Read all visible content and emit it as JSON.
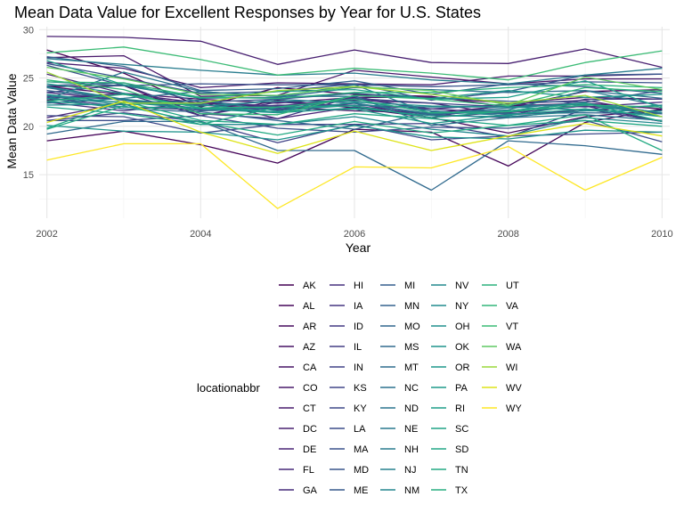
{
  "chart_data": {
    "type": "line",
    "title": "Mean Data Value for Excellent Responses by Year for U.S. States",
    "xlabel": "Year",
    "ylabel": "Mean Data Value",
    "x": [
      2002,
      2003,
      2004,
      2005,
      2006,
      2007,
      2008,
      2009,
      2010
    ],
    "x_ticks": [
      2002,
      2004,
      2006,
      2008,
      2010
    ],
    "y_ticks": [
      15,
      20,
      25,
      30
    ],
    "xlim": [
      2001.9,
      2010.1
    ],
    "ylim": [
      10.5,
      30.3
    ],
    "grid": true,
    "legend": {
      "title": "locationabbr",
      "position": "bottom"
    },
    "series": [
      {
        "name": "AK",
        "color": "#440154",
        "values": [
          27.9,
          25.5,
          22.0,
          24.0,
          23.3,
          23.1,
          22.0,
          23.6,
          23.8
        ]
      },
      {
        "name": "AL",
        "color": "#450559",
        "values": [
          18.5,
          19.5,
          18.1,
          16.2,
          19.7,
          19.4,
          15.9,
          20.4,
          21.8
        ]
      },
      {
        "name": "AR",
        "color": "#460a5d",
        "values": [
          24.1,
          24.2,
          21.1,
          22.7,
          21.9,
          20.9,
          19.3,
          21.0,
          21.7
        ]
      },
      {
        "name": "AZ",
        "color": "#471063",
        "values": [
          24.1,
          23.3,
          22.2,
          22.0,
          21.6,
          21.4,
          22.1,
          22.4,
          21.8
        ]
      },
      {
        "name": "CA",
        "color": "#471365",
        "values": [
          22.7,
          23.4,
          22.8,
          22.4,
          23.0,
          23.0,
          22.4,
          23.0,
          22.8
        ]
      },
      {
        "name": "CO",
        "color": "#48186a",
        "values": [
          27.1,
          27.3,
          23.1,
          23.2,
          25.8,
          25.1,
          24.4,
          24.9,
          24.9
        ]
      },
      {
        "name": "CT",
        "color": "#481c6e",
        "values": [
          26.6,
          26.0,
          24.0,
          24.5,
          24.4,
          24.3,
          25.2,
          25.2,
          25.4
        ]
      },
      {
        "name": "DC",
        "color": "#482071",
        "values": [
          29.3,
          29.2,
          28.8,
          26.4,
          27.9,
          26.6,
          26.5,
          28.0,
          26.1
        ]
      },
      {
        "name": "DE",
        "color": "#482475",
        "values": [
          20.9,
          22.4,
          22.7,
          20.8,
          22.0,
          20.9,
          21.5,
          22.1,
          20.5
        ]
      },
      {
        "name": "FL",
        "color": "#472878",
        "values": [
          25.4,
          23.4,
          22.4,
          22.0,
          22.7,
          22.4,
          21.2,
          21.6,
          22.2
        ]
      },
      {
        "name": "GA",
        "color": "#472c7a",
        "values": [
          23.5,
          22.7,
          22.2,
          21.7,
          22.4,
          20.9,
          22.3,
          22.7,
          21.3
        ]
      },
      {
        "name": "HI",
        "color": "#46307e",
        "values": [
          22.5,
          21.6,
          22.5,
          22.1,
          22.9,
          21.8,
          22.3,
          22.0,
          22.5
        ]
      },
      {
        "name": "IA",
        "color": "#453581",
        "values": [
          22.9,
          23.4,
          21.1,
          22.5,
          22.1,
          21.2,
          20.9,
          21.8,
          20.5
        ]
      },
      {
        "name": "ID",
        "color": "#443983",
        "values": [
          23.5,
          24.3,
          21.3,
          20.8,
          23.1,
          21.6,
          21.1,
          22.8,
          22.8
        ]
      },
      {
        "name": "IL",
        "color": "#433d84",
        "values": [
          23.0,
          22.0,
          21.7,
          22.2,
          22.2,
          21.8,
          21.4,
          22.1,
          21.4
        ]
      },
      {
        "name": "IN",
        "color": "#414287",
        "values": [
          20.6,
          21.4,
          20.5,
          18.3,
          20.2,
          20.3,
          18.9,
          21.8,
          20.5
        ]
      },
      {
        "name": "KS",
        "color": "#404688",
        "values": [
          23.1,
          22.8,
          21.8,
          21.9,
          22.9,
          22.4,
          22.0,
          22.3,
          21.3
        ]
      },
      {
        "name": "KY",
        "color": "#3e4989",
        "values": [
          21.1,
          21.0,
          19.3,
          20.2,
          20.2,
          18.6,
          19.0,
          19.2,
          19.4
        ]
      },
      {
        "name": "LA",
        "color": "#3c4d8a",
        "values": [
          20.6,
          20.6,
          21.1,
          19.8,
          19.4,
          19.9,
          19.8,
          20.6,
          18.4
        ]
      },
      {
        "name": "MA",
        "color": "#3a528b",
        "values": [
          26.3,
          24.2,
          24.4,
          24.3,
          24.3,
          24.1,
          24.3,
          24.6,
          24.5
        ]
      },
      {
        "name": "MD",
        "color": "#38558c",
        "values": [
          26.5,
          25.0,
          23.4,
          23.6,
          24.4,
          22.7,
          23.6,
          25.3,
          25.4
        ]
      },
      {
        "name": "ME",
        "color": "#37598c",
        "values": [
          24.2,
          24.5,
          22.5,
          22.8,
          23.4,
          22.9,
          22.6,
          22.5,
          23.7
        ]
      },
      {
        "name": "MI",
        "color": "#355e8d",
        "values": [
          23.7,
          22.8,
          21.6,
          21.8,
          22.4,
          21.2,
          21.6,
          22.4,
          21.0
        ]
      },
      {
        "name": "MN",
        "color": "#33628d",
        "values": [
          27.2,
          26.2,
          23.7,
          23.9,
          24.7,
          23.3,
          24.4,
          24.1,
          23.4
        ]
      },
      {
        "name": "MO",
        "color": "#31668e",
        "values": [
          22.9,
          21.8,
          21.5,
          20.6,
          19.7,
          21.5,
          21.3,
          21.4,
          21.3
        ]
      },
      {
        "name": "MS",
        "color": "#306a8e",
        "values": [
          19.2,
          20.5,
          20.5,
          17.5,
          17.5,
          13.4,
          18.5,
          18.0,
          17.1
        ]
      },
      {
        "name": "MT",
        "color": "#2e6d8e",
        "values": [
          24.6,
          24.2,
          22.9,
          23.0,
          24.0,
          23.8,
          23.5,
          23.7,
          22.9
        ]
      },
      {
        "name": "NC",
        "color": "#2c718e",
        "values": [
          24.0,
          22.7,
          21.8,
          22.8,
          22.4,
          21.3,
          21.9,
          22.4,
          21.4
        ]
      },
      {
        "name": "ND",
        "color": "#2b758e",
        "values": [
          22.4,
          22.9,
          23.6,
          23.1,
          23.1,
          20.1,
          20.9,
          21.2,
          20.6
        ]
      },
      {
        "name": "NE",
        "color": "#29798e",
        "values": [
          22.8,
          25.6,
          23.6,
          23.1,
          24.3,
          21.3,
          21.7,
          23.7,
          22.1
        ]
      },
      {
        "name": "NH",
        "color": "#287c8e",
        "values": [
          27.0,
          26.4,
          25.8,
          25.3,
          25.5,
          24.8,
          24.4,
          25.3,
          26.0
        ]
      },
      {
        "name": "NJ",
        "color": "#26818e",
        "values": [
          23.2,
          22.2,
          22.7,
          21.6,
          22.2,
          22.0,
          22.0,
          22.4,
          21.0
        ]
      },
      {
        "name": "NM",
        "color": "#25858e",
        "values": [
          24.1,
          22.8,
          22.1,
          22.6,
          22.6,
          21.6,
          21.1,
          22.3,
          21.4
        ]
      },
      {
        "name": "NV",
        "color": "#23888e",
        "values": [
          22.2,
          22.3,
          20.2,
          20.2,
          21.0,
          19.7,
          19.0,
          20.9,
          20.3
        ]
      },
      {
        "name": "NY",
        "color": "#218c8d",
        "values": [
          22.9,
          22.5,
          21.8,
          21.4,
          21.9,
          21.1,
          21.0,
          21.6,
          21.6
        ]
      },
      {
        "name": "OH",
        "color": "#21908d",
        "values": [
          23.3,
          22.4,
          22.3,
          21.4,
          22.5,
          22.1,
          22.0,
          21.7,
          22.2
        ]
      },
      {
        "name": "OK",
        "color": "#1f948c",
        "values": [
          20.1,
          19.5,
          19.4,
          18.6,
          20.1,
          18.9,
          18.7,
          19.6,
          19.4
        ]
      },
      {
        "name": "OR",
        "color": "#1f978b",
        "values": [
          24.4,
          23.4,
          21.9,
          21.5,
          23.2,
          22.9,
          23.7,
          23.0,
          23.3
        ]
      },
      {
        "name": "PA",
        "color": "#1f9a8a",
        "values": [
          22.6,
          22.0,
          21.9,
          21.5,
          21.8,
          20.3,
          21.2,
          21.8,
          21.0
        ]
      },
      {
        "name": "RI",
        "color": "#1e9e89",
        "values": [
          26.8,
          24.3,
          22.9,
          23.6,
          23.8,
          22.8,
          23.0,
          24.7,
          21.9
        ]
      },
      {
        "name": "SC",
        "color": "#20a386",
        "values": [
          22.0,
          21.3,
          20.2,
          22.0,
          22.1,
          20.9,
          21.6,
          22.4,
          20.5
        ]
      },
      {
        "name": "SD",
        "color": "#22a785",
        "values": [
          19.8,
          22.6,
          20.6,
          20.2,
          21.3,
          20.8,
          20.1,
          20.6,
          20.0
        ]
      },
      {
        "name": "TN",
        "color": "#24aa83",
        "values": [
          19.7,
          22.1,
          20.4,
          19.1,
          20.5,
          19.3,
          20.1,
          21.2,
          17.5
        ]
      },
      {
        "name": "TX",
        "color": "#28ae80",
        "values": [
          22.6,
          23.3,
          21.9,
          22.0,
          22.8,
          21.4,
          21.5,
          22.2,
          22.0
        ]
      },
      {
        "name": "UT",
        "color": "#2db27d",
        "values": [
          24.6,
          24.5,
          23.0,
          22.9,
          23.5,
          23.5,
          24.0,
          24.3,
          24.0
        ]
      },
      {
        "name": "VA",
        "color": "#32b67a",
        "values": [
          24.8,
          23.8,
          21.3,
          21.2,
          23.2,
          22.8,
          22.1,
          24.0,
          23.6
        ]
      },
      {
        "name": "VT",
        "color": "#3bbb75",
        "values": [
          27.6,
          28.2,
          26.9,
          25.3,
          26.0,
          25.5,
          24.8,
          26.6,
          27.8
        ]
      },
      {
        "name": "WA",
        "color": "#5ec962",
        "values": [
          26.1,
          24.9,
          23.3,
          23.2,
          24.1,
          23.7,
          22.2,
          25.1,
          23.8
        ]
      },
      {
        "name": "WI",
        "color": "#9bd93c",
        "values": [
          25.6,
          22.4,
          22.4,
          23.7,
          24.1,
          23.3,
          22.4,
          23.2,
          21.0
        ]
      },
      {
        "name": "WV",
        "color": "#dde318",
        "values": [
          20.4,
          22.6,
          19.4,
          17.2,
          19.5,
          17.5,
          19.0,
          20.3,
          19.0
        ]
      },
      {
        "name": "WY",
        "color": "#fde725",
        "values": [
          16.5,
          18.2,
          18.2,
          11.5,
          15.8,
          15.7,
          17.9,
          13.4,
          16.8
        ]
      }
    ]
  }
}
